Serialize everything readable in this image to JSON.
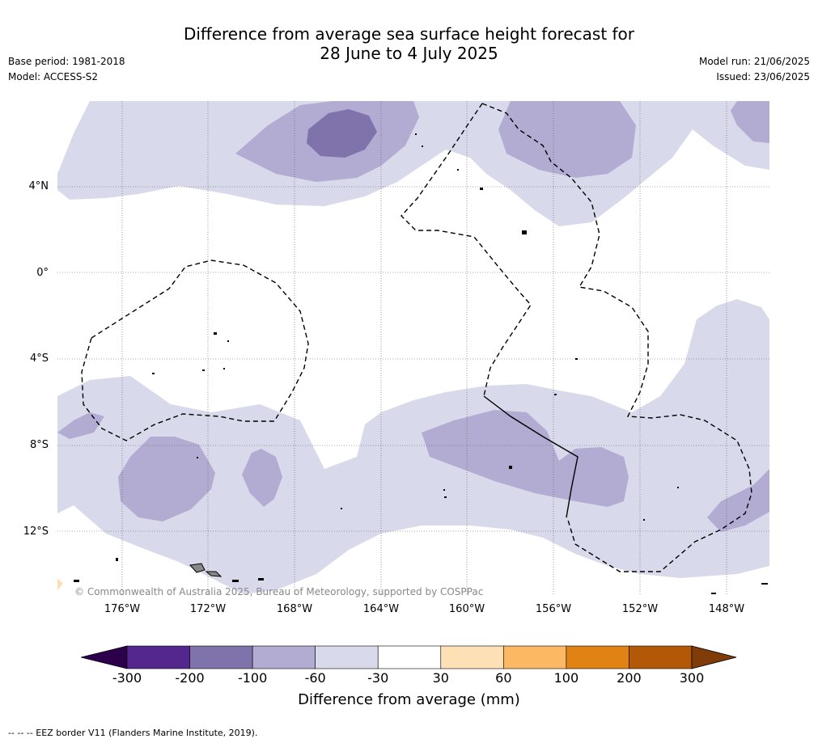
{
  "title_line1": "Difference from average sea surface height forecast for",
  "title_line2": "28 June to 4 July 2025",
  "base_period": "Base period: 1981-2018",
  "model": "Model: ACCESS-S2",
  "model_run": "Model run: 21/06/2025",
  "issued": "Issued: 23/06/2025",
  "lat_labels": [
    "4°N",
    "0°",
    "4°S",
    "8°S",
    "12°S"
  ],
  "lon_labels": [
    "176°W",
    "172°W",
    "168°W",
    "164°W",
    "160°W",
    "156°W",
    "152°W",
    "148°W"
  ],
  "copyright": "© Commonwealth of Australia 2025, Bureau of Meteorology, supported by COSPPac",
  "colorbar": {
    "ticks": [
      "-300",
      "-200",
      "-100",
      "-60",
      "-30",
      "30",
      "60",
      "100",
      "200",
      "300"
    ],
    "colors": [
      "#54278f",
      "#8073ac",
      "#b2abd2",
      "#d8daeb",
      "#ffffff",
      "#fee0b6",
      "#fdb863",
      "#e08214",
      "#b35806"
    ],
    "under_color": "#2d004b",
    "over_color": "#7f3b08",
    "label": "Difference from average (mm)"
  },
  "footer": "--  --  -- EEZ border V11 (Flanders Marine Institute, 2019)."
}
